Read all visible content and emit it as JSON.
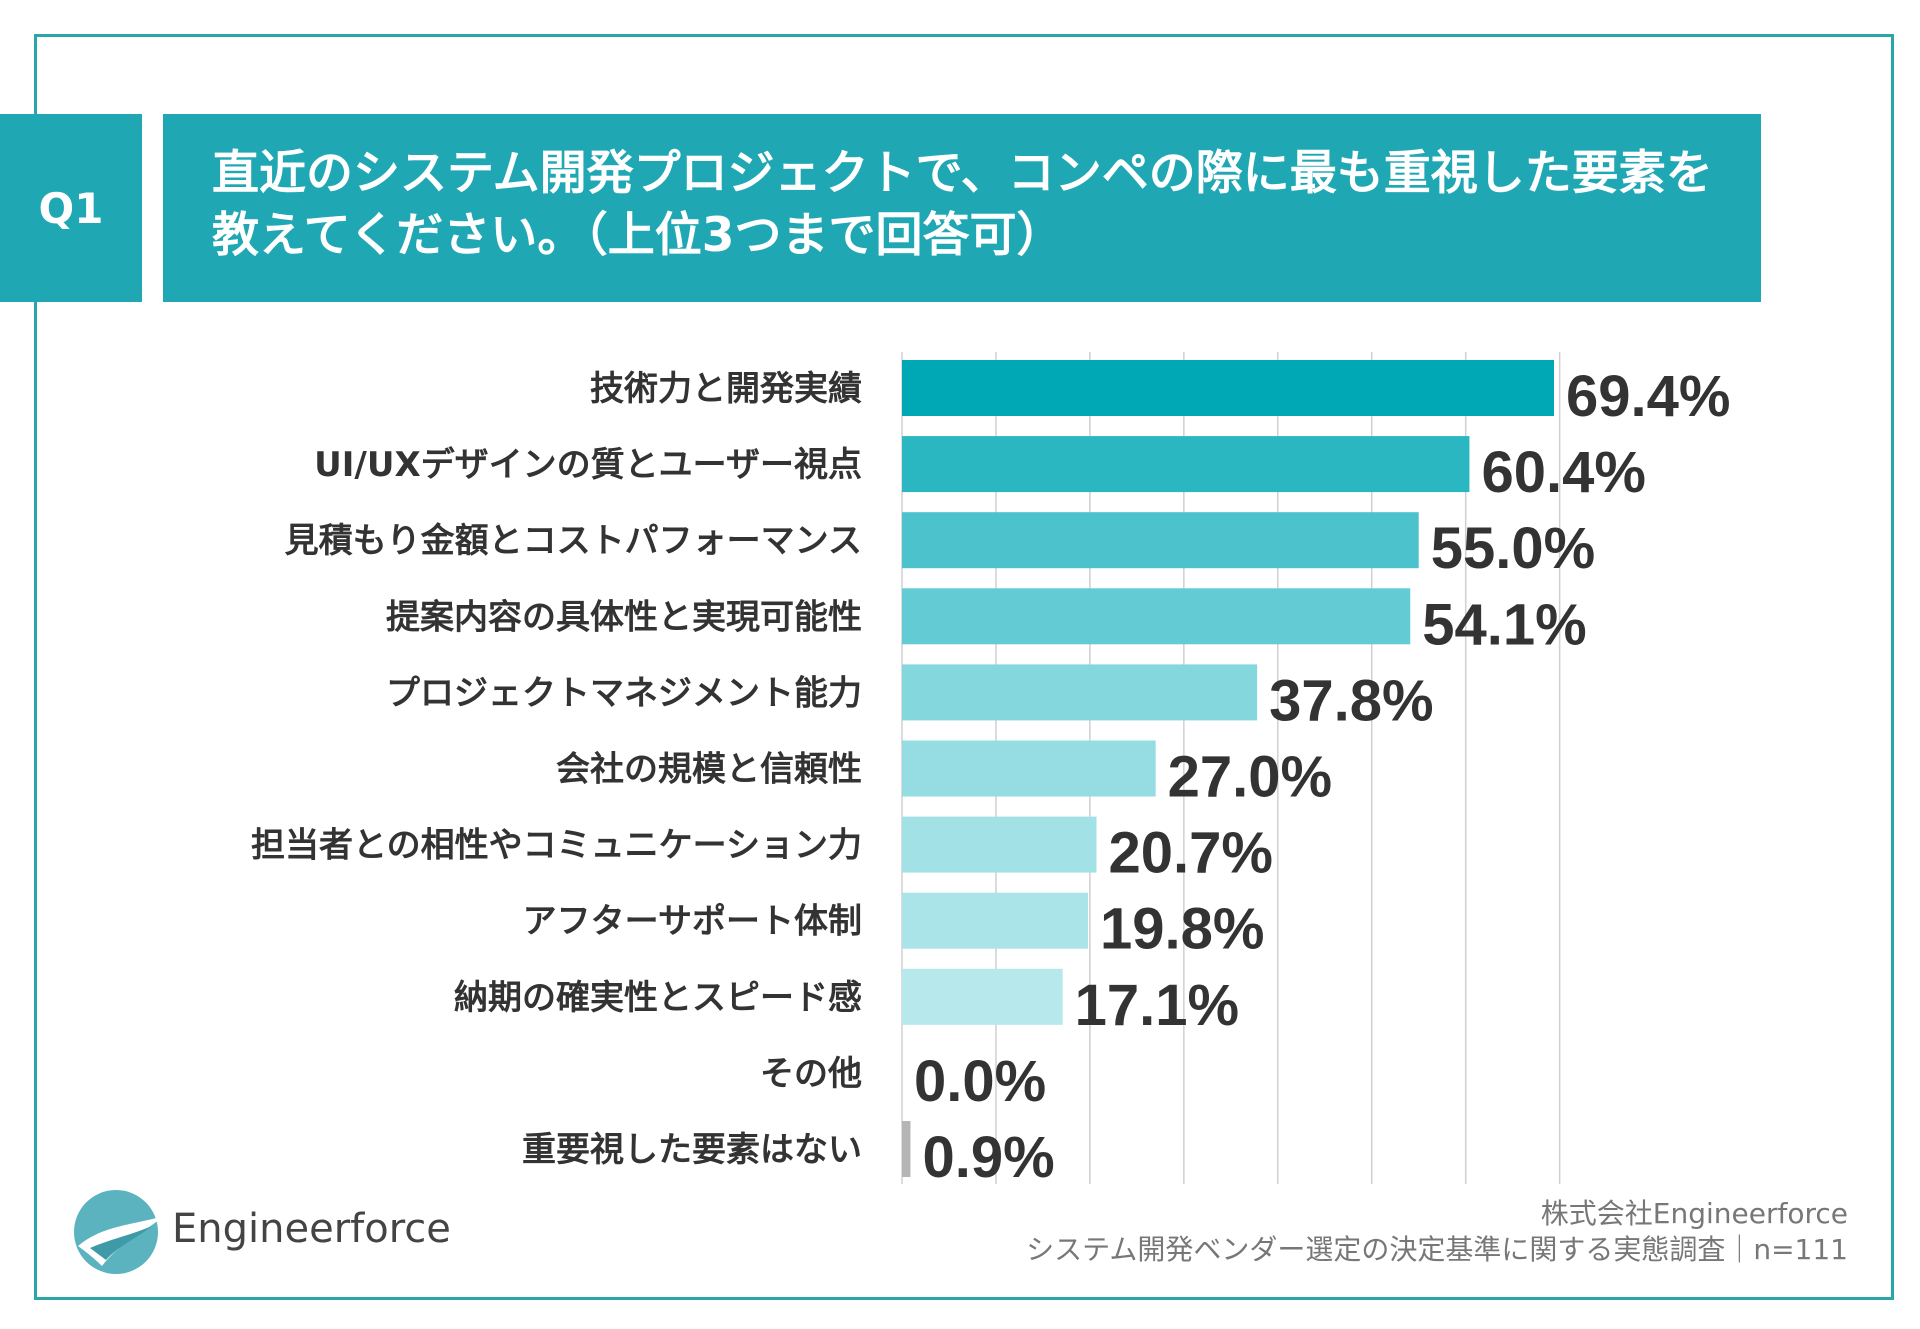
{
  "question": {
    "number": "Q1",
    "title": "直近のシステム開発プロジェクトで、コンペの際に最も重視した要素を教えてください。（上位3つまで回答可）"
  },
  "chart_data": {
    "type": "bar",
    "orientation": "horizontal",
    "title": "直近のシステム開発プロジェクトで、コンペの際に最も重視した要素を教えてください。（上位3つまで回答可）",
    "xlim": [
      0,
      70
    ],
    "grid": true,
    "unit": "%",
    "categories": [
      "技術力と開発実績",
      "UI/UXデザインの質とユーザー視点",
      "見積もり金額とコストパフォーマンス",
      "提案内容の具体性と実現可能性",
      "プロジェクトマネジメント能力",
      "会社の規模と信頼性",
      "担当者との相性やコミュニケーション力",
      "アフターサポート体制",
      "納期の確実性とスピード感",
      "その他",
      "重要視した要素はない"
    ],
    "values": [
      69.4,
      60.4,
      55.0,
      54.1,
      37.8,
      27.0,
      20.7,
      19.8,
      17.1,
      0.0,
      0.9
    ],
    "value_labels": [
      "69.4%",
      "60.4%",
      "55.0%",
      "54.1%",
      "37.8%",
      "27.0%",
      "20.7%",
      "19.8%",
      "17.1%",
      "0.0%",
      "0.9%"
    ],
    "colors": [
      "#00a8b6",
      "#2bb7c2",
      "#4cc3cc",
      "#62cbd3",
      "#84d7dd",
      "#95dde2",
      "#a2e2e6",
      "#abe4e8",
      "#b6e8ec",
      "#b5b5b5",
      "#b5b5b5"
    ]
  },
  "logo": {
    "name": "Engineerforce"
  },
  "footer": {
    "company": "株式会社Engineerforce",
    "source": "システム開発ベンダー選定の決定基準に関する実態調査｜n=111"
  }
}
